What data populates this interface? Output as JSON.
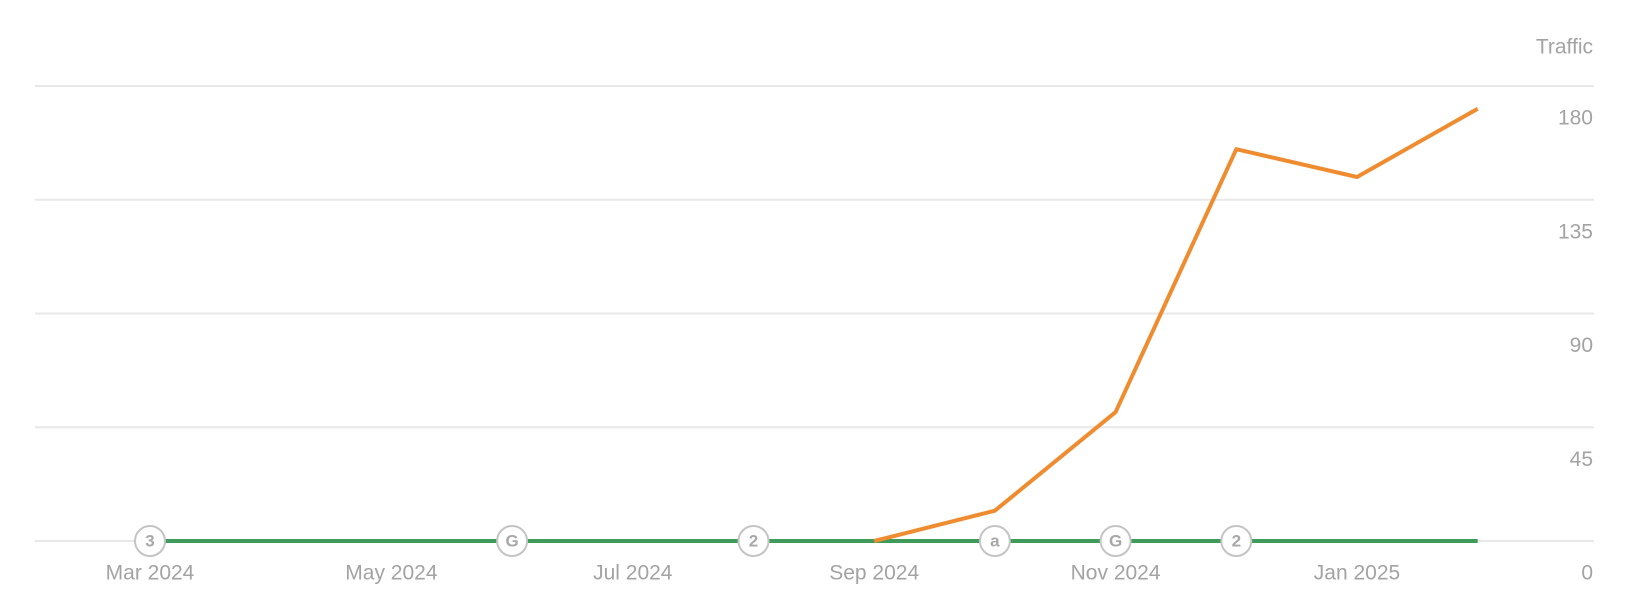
{
  "chart_data": {
    "type": "line",
    "y_axis_label": "Traffic",
    "categories": [
      "Mar 2024",
      null,
      "May 2024",
      null,
      "Jul 2024",
      null,
      "Sep 2024",
      null,
      "Nov 2024",
      null,
      "Jan 2025",
      null
    ],
    "series": [
      {
        "color": "#3e9b5a",
        "values": [
          0,
          0,
          0,
          0,
          0,
          0,
          0,
          0,
          0,
          0,
          0,
          0
        ]
      },
      {
        "color": "#f08c30",
        "values": [
          null,
          null,
          null,
          null,
          null,
          null,
          0,
          12,
          51,
          155,
          144,
          171
        ]
      }
    ],
    "ylim": [
      0,
      180
    ],
    "yticks": [
      0,
      45,
      90,
      135,
      180
    ],
    "grid": true,
    "annotations": [
      {
        "text": "3",
        "at": 0
      },
      {
        "text": "G",
        "at": 3
      },
      {
        "text": "2",
        "at": 5
      },
      {
        "text": "a",
        "at": 7
      },
      {
        "text": "G",
        "at": 8
      },
      {
        "text": "2",
        "at": 9
      }
    ]
  }
}
